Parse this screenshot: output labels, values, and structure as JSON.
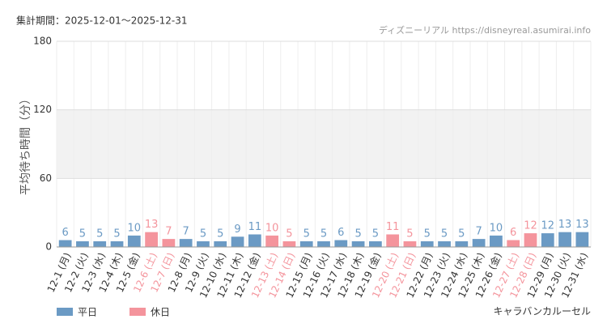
{
  "chart_data": {
    "type": "bar",
    "period": "集計期間：2025-12-01～2025-12-31",
    "source": "ディズニーリアル https://disneyreal.asumirai.info",
    "y_label": "平均待ち時間（分）",
    "attraction": "キャラバンカルーセル",
    "categories": [
      "12-1 (月)",
      "12-2 (火)",
      "12-3 (水)",
      "12-4 (木)",
      "12-5 (金)",
      "12-6 (土)",
      "12-7 (日)",
      "12-8 (月)",
      "12-9 (火)",
      "12-10 (水)",
      "12-11 (木)",
      "12-12 (金)",
      "12-13 (土)",
      "12-14 (日)",
      "12-15 (月)",
      "12-16 (火)",
      "12-17 (水)",
      "12-18 (木)",
      "12-19 (金)",
      "12-20 (土)",
      "12-21 (日)",
      "12-22 (月)",
      "12-23 (火)",
      "12-24 (水)",
      "12-25 (木)",
      "12-26 (金)",
      "12-27 (土)",
      "12-28 (日)",
      "12-29 (月)",
      "12-30 (火)",
      "12-31 (水)"
    ],
    "series": [
      {
        "name": "平日",
        "color": "#6b9ac4",
        "values": [
          6,
          5,
          5,
          5,
          10,
          null,
          null,
          7,
          5,
          5,
          9,
          11,
          null,
          null,
          5,
          5,
          6,
          5,
          5,
          null,
          null,
          5,
          5,
          5,
          7,
          10,
          null,
          null,
          12,
          13,
          13
        ]
      },
      {
        "name": "休日",
        "color": "#f4949c",
        "values": [
          null,
          null,
          null,
          null,
          null,
          13,
          7,
          null,
          null,
          null,
          null,
          null,
          10,
          5,
          null,
          null,
          null,
          null,
          null,
          11,
          5,
          null,
          null,
          null,
          null,
          null,
          6,
          12,
          null,
          null,
          null
        ]
      }
    ],
    "ylim": [
      0,
      180
    ],
    "yticks": [
      0,
      60,
      120,
      180
    ],
    "grid": true,
    "legend": "bottom-left"
  }
}
